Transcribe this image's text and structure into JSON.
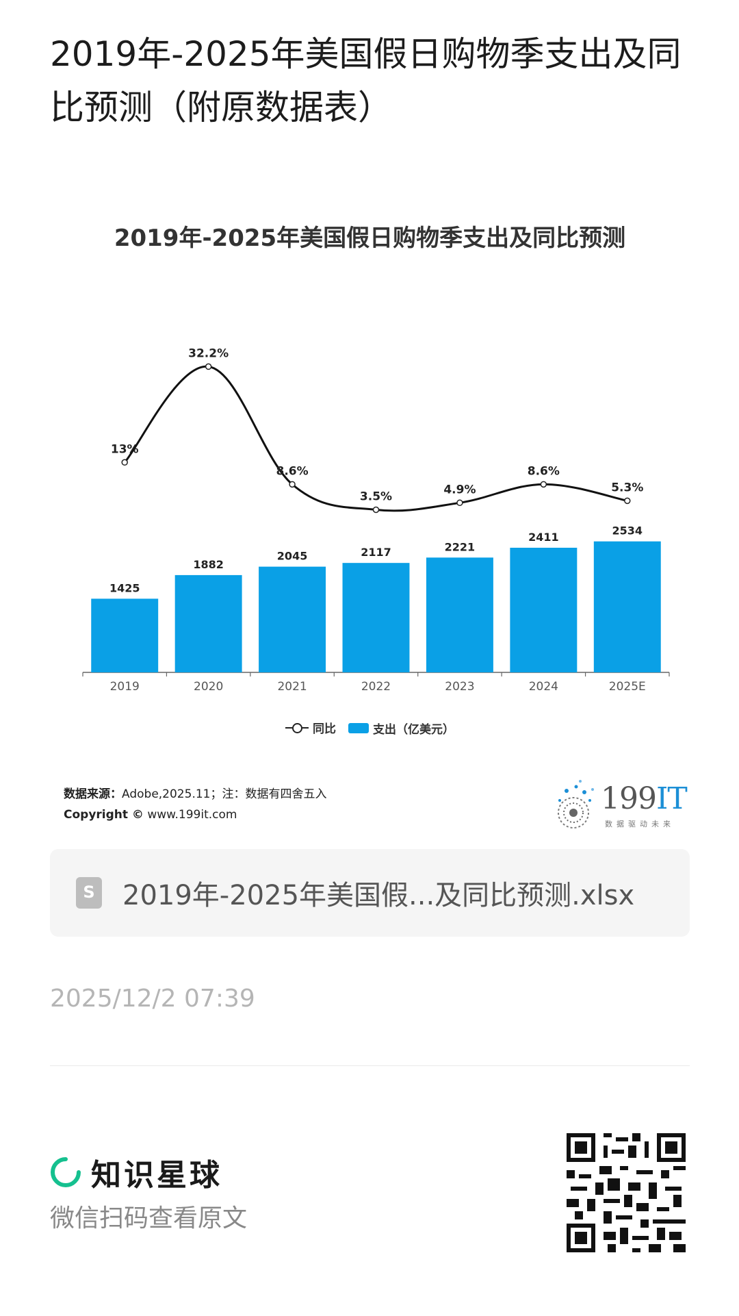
{
  "page": {
    "title": "2019年-2025年美国假日购物季支出及同比预测（附原数据表）"
  },
  "chart_data": {
    "type": "bar",
    "title": "2019年-2025年美国假日购物季支出及同比预测",
    "categories": [
      "2019",
      "2020",
      "2021",
      "2022",
      "2023",
      "2024",
      "2025E"
    ],
    "series": [
      {
        "name": "支出（亿美元）",
        "type": "bar",
        "values": [
          1425,
          1882,
          2045,
          2117,
          2221,
          2411,
          2534
        ],
        "color": "#0aa0e6"
      },
      {
        "name": "同比",
        "type": "line",
        "values": [
          13,
          32.2,
          8.6,
          3.5,
          4.9,
          8.6,
          5.3
        ],
        "labels": [
          "13%",
          "32.2%",
          "8.6%",
          "3.5%",
          "4.9%",
          "8.6%",
          "5.3%"
        ],
        "color": "#111111"
      }
    ],
    "legend": [
      "同比",
      "支出（亿美元）"
    ],
    "legend_position": "bottom",
    "grid": false
  },
  "source": {
    "label": "数据来源：",
    "text": "Adobe,2025.11；注：数据有四舍五入",
    "copyright_label": "Copyright ©",
    "copyright_text": "www.199it.com"
  },
  "brand": {
    "name_num": "199",
    "name_it": "IT",
    "slogan": "数据驱动未来"
  },
  "file": {
    "icon": "spreadsheet-icon",
    "name": "2019年-2025年美国假...及同比预测.xlsx"
  },
  "timestamp": "2025/12/2 07:39",
  "footer": {
    "brand_name": "知识星球",
    "scan_hint": "微信扫码查看原文"
  },
  "colors": {
    "bar": "#0aa0e6",
    "line": "#111111",
    "planet_green": "#15c08f"
  }
}
